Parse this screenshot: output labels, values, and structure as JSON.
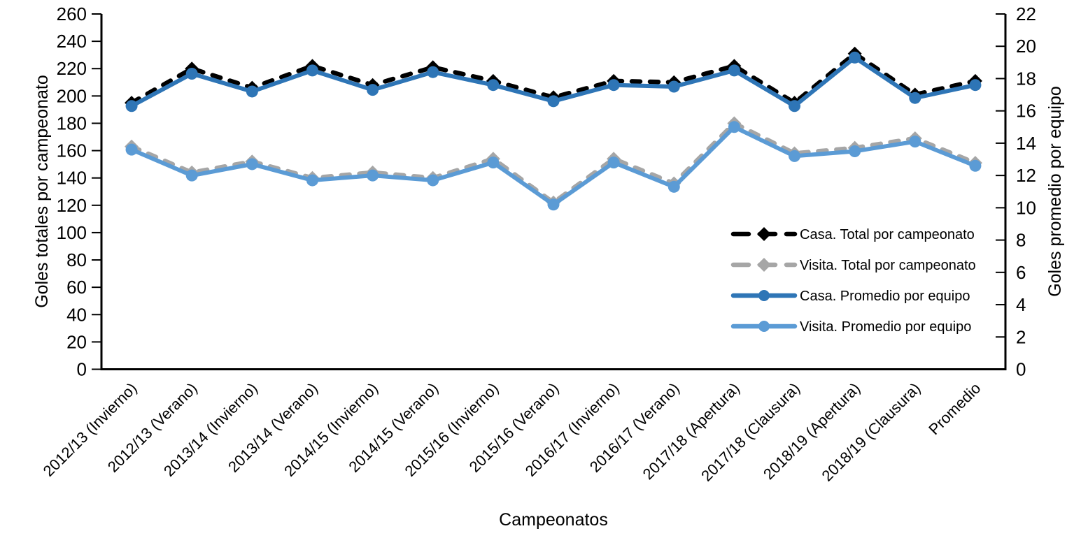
{
  "chart_data": {
    "type": "line",
    "title": "",
    "xlabel": "Campeonatos",
    "ylabel_left": "Goles totales por campeonato",
    "ylabel_right": "Goles promedio por equipo",
    "grid": false,
    "legend_position": "middle-right",
    "y_left": {
      "min": 0,
      "max": 260,
      "step": 20,
      "ticks": [
        "0",
        "20",
        "40",
        "60",
        "80",
        "100",
        "120",
        "140",
        "160",
        "180",
        "200",
        "220",
        "240",
        "260"
      ]
    },
    "y_right": {
      "min": 0,
      "max": 22,
      "step": 2,
      "ticks": [
        "0",
        "2",
        "4",
        "6",
        "8",
        "10",
        "12",
        "14",
        "16",
        "18",
        "20",
        "22"
      ]
    },
    "categories": [
      "2012/13 (Invierno)",
      "2012/13 (Verano)",
      "2013/14 (Invierno)",
      "2013/14 (Verano)",
      "2014/15 (Invierno)",
      "2014/15 (Verano)",
      "2015/16 (Invierno)",
      "2015/16 (Verano)",
      "2016/17 (Invierno)",
      "2016/17 (Verano)",
      "2017/18 (Apertura)",
      "2017/18 (Clausura)",
      "2018/19 (Apertura)",
      "2018/19 (Clausura)",
      "Promedio"
    ],
    "series": [
      {
        "name": "Casa. Total por campeonato",
        "axis": "left",
        "color": "#000000",
        "line": "dashed",
        "marker": "diamond",
        "values": [
          195,
          220,
          206,
          222,
          208,
          221,
          211,
          199,
          211,
          210,
          222,
          195,
          231,
          201,
          211
        ]
      },
      {
        "name": "Visita. Total por campeonato",
        "axis": "left",
        "color": "#A6A6A6",
        "line": "dashed",
        "marker": "diamond",
        "values": [
          163,
          144,
          152,
          140,
          144,
          140,
          154,
          122,
          154,
          136,
          180,
          158,
          162,
          169,
          151
        ]
      },
      {
        "name": "Casa. Promedio por equipo",
        "axis": "right",
        "color": "#2E75B6",
        "line": "solid",
        "marker": "circle",
        "values": [
          16.3,
          18.3,
          17.2,
          18.5,
          17.3,
          18.4,
          17.6,
          16.6,
          17.6,
          17.5,
          18.5,
          16.3,
          19.3,
          16.8,
          17.6
        ]
      },
      {
        "name": "Visita. Promedio por equipo",
        "axis": "right",
        "color": "#5B9BD5",
        "line": "solid",
        "marker": "circle",
        "values": [
          13.6,
          12.0,
          12.7,
          11.7,
          12.0,
          11.7,
          12.8,
          10.2,
          12.8,
          11.3,
          15.0,
          13.2,
          13.5,
          14.1,
          12.6
        ]
      }
    ]
  }
}
